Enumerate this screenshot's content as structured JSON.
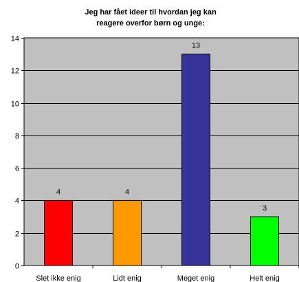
{
  "chart_data": {
    "type": "bar",
    "title": [
      "Jeg har fået ideer til hvordan jeg kan",
      "reagere overfor børn og unge:"
    ],
    "xlabel": "",
    "ylabel": "",
    "categories": [
      "Slet ikke enig",
      "Lidt enig",
      "Meget enig",
      "Helt enig"
    ],
    "values": [
      4,
      4,
      13,
      3
    ],
    "colors": [
      "#ff0000",
      "#ff9900",
      "#333399",
      "#00ff00"
    ],
    "ylim": [
      0,
      14
    ],
    "yticks": [
      0,
      2,
      4,
      6,
      8,
      10,
      12,
      14
    ],
    "grid": true,
    "plot_background": "#c0c0c0",
    "data_labels": [
      "4",
      "4",
      "13",
      "3"
    ]
  }
}
